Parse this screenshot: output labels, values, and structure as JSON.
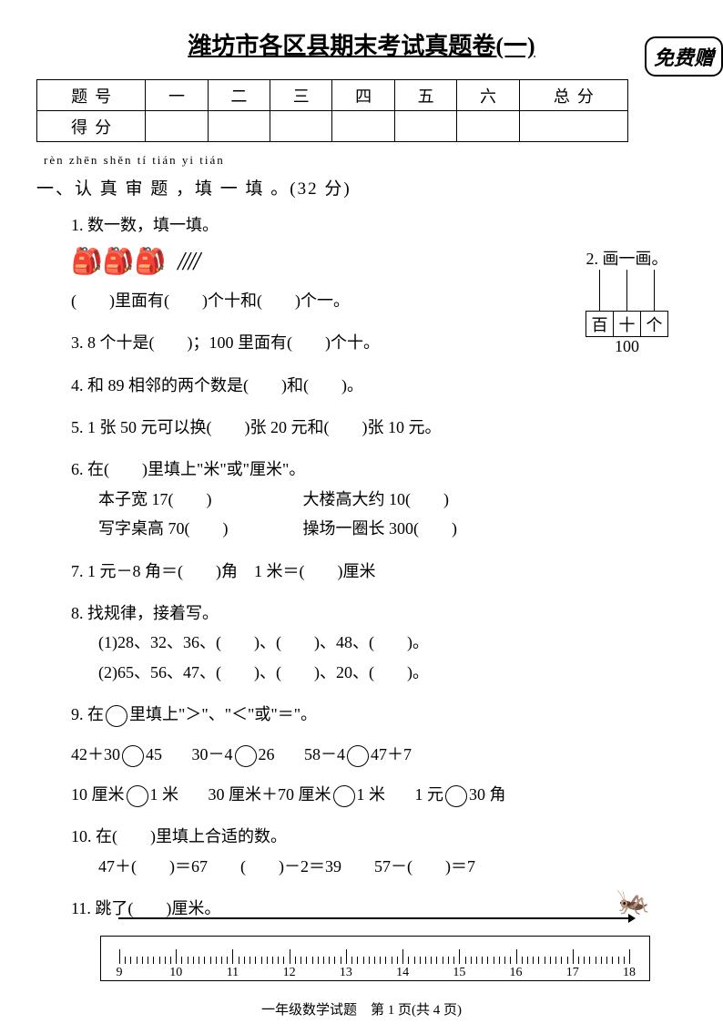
{
  "title": "潍坊市各区县期末考试真题卷(一)",
  "stamp": "免费赠",
  "score_table": {
    "row1": [
      "题号",
      "一",
      "二",
      "三",
      "四",
      "五",
      "六",
      "总分"
    ],
    "row2_label": "得分"
  },
  "pinyin": "rèn zhēn shěn tí    tián yi tián",
  "section1_title": "一、认 真 审 题 ，填 一 填 。(32 分)",
  "q1": {
    "label": "1. 数一数，填一填。",
    "text": "(　　)里面有(　　)个十和(　　)个一。"
  },
  "q2": {
    "label": "2. 画一画。",
    "places": [
      "百",
      "十",
      "个"
    ],
    "number": "100"
  },
  "q3": "3. 8 个十是(　　)；100 里面有(　　)个十。",
  "q4": "4. 和 89 相邻的两个数是(　　)和(　　)。",
  "q5": "5. 1 张 50 元可以换(　　)张 20 元和(　　)张 10 元。",
  "q6": {
    "label": "6. 在(　　)里填上\"米\"或\"厘米\"。",
    "a": "本子宽 17(　　)",
    "b": "大楼高大约 10(　　)",
    "c": "写字桌高 70(　　)",
    "d": "操场一圈长 300(　　)"
  },
  "q7": "7. 1 元－8 角＝(　　)角　1 米＝(　　)厘米",
  "q8": {
    "label": "8. 找规律，接着写。",
    "a": "(1)28、32、36、(　　)、(　　)、48、(　　)。",
    "b": "(2)65、56、47、(　　)、(　　)、20、(　　)。"
  },
  "q9": {
    "label": "9. 在　 里填上\"＞\"、\"＜\"或\"＝\"。",
    "row1": [
      "42＋30",
      "45",
      "30－4",
      "26",
      "58－4",
      "47＋7"
    ],
    "row2": [
      "10 厘米",
      "1 米",
      "30 厘米＋70 厘米",
      "1 米",
      "1 元",
      "30 角"
    ]
  },
  "q10": {
    "label": "10. 在(　　)里填上合适的数。",
    "items": "47＋(　　)＝67　　(　　)－2＝39　　57－(　　)＝7"
  },
  "q11": "11. 跳了(　　)厘米。",
  "ruler": {
    "start": 9,
    "end": 18,
    "jump_from": 9,
    "jump_to": 18
  },
  "footer": "一年级数学试题　第 1 页(共 4 页)"
}
